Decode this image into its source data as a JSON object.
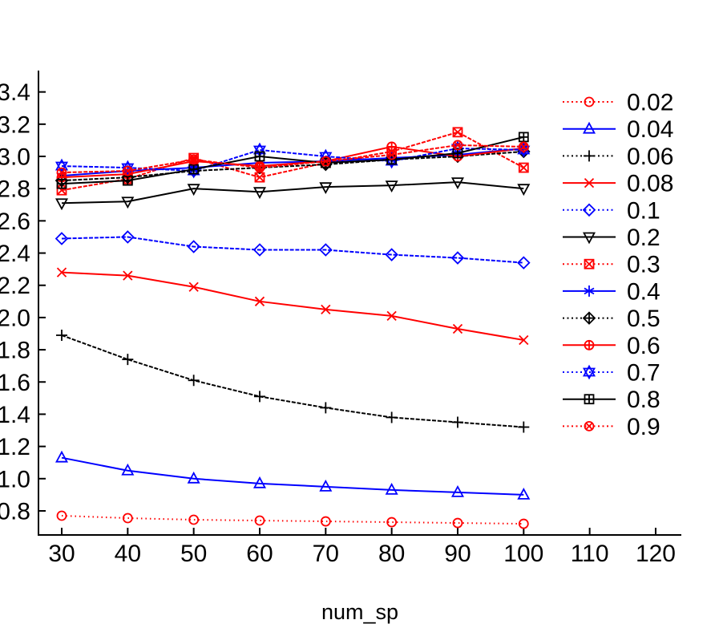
{
  "chart_data": {
    "type": "line",
    "title": "",
    "xlabel": "num_sp",
    "ylabel": "",
    "grid": false,
    "legend_position": "right",
    "xlim": [
      26.5,
      124.0
    ],
    "ylim": [
      0.64,
      3.54
    ],
    "xticks": [
      30,
      40,
      50,
      60,
      70,
      80,
      90,
      100,
      110,
      120
    ],
    "yticks": [
      0.8,
      1.0,
      1.2,
      1.4,
      1.6,
      1.8,
      2.0,
      2.2,
      2.4,
      2.6,
      2.8,
      3.0,
      3.2,
      3.4
    ],
    "ytick_labels": [
      "0.8",
      "1.0",
      "1.2",
      "1.4",
      "1.6",
      "1.8",
      "2.0",
      "2.2",
      "2.4",
      "2.6",
      "2.8",
      "3.0",
      "3.2",
      "3.4"
    ],
    "x": [
      30,
      40,
      50,
      60,
      70,
      80,
      90,
      100
    ],
    "series": [
      {
        "name": "0.02",
        "color": "#ff0000",
        "line": "dotted",
        "marker": "circle",
        "values": [
          0.77,
          0.755,
          0.745,
          0.74,
          0.735,
          0.73,
          0.725,
          0.72
        ]
      },
      {
        "name": "0.04",
        "color": "#0000ff",
        "line": "solid",
        "marker": "triangle-up",
        "values": [
          1.13,
          1.05,
          1.0,
          0.97,
          0.95,
          0.93,
          0.915,
          0.9
        ]
      },
      {
        "name": "0.06",
        "color": "#000000",
        "line": "dotted",
        "marker": "plus",
        "values": [
          1.89,
          1.74,
          1.61,
          1.51,
          1.44,
          1.38,
          1.35,
          1.32
        ]
      },
      {
        "name": "0.08",
        "color": "#ff0000",
        "line": "solid",
        "marker": "x",
        "values": [
          2.28,
          2.26,
          2.19,
          2.1,
          2.05,
          2.01,
          1.93,
          1.86
        ]
      },
      {
        "name": "0.1",
        "color": "#0000ff",
        "line": "dotted",
        "marker": "diamond",
        "values": [
          2.49,
          2.5,
          2.44,
          2.42,
          2.42,
          2.39,
          2.37,
          2.34
        ]
      },
      {
        "name": "0.2",
        "color": "#000000",
        "line": "solid",
        "marker": "triangle-down",
        "values": [
          2.71,
          2.72,
          2.8,
          2.78,
          2.81,
          2.82,
          2.84,
          2.8
        ]
      },
      {
        "name": "0.3",
        "color": "#ff0000",
        "line": "dotted",
        "marker": "box-x",
        "values": [
          2.79,
          2.86,
          2.99,
          2.87,
          2.96,
          3.03,
          3.15,
          2.93
        ]
      },
      {
        "name": "0.4",
        "color": "#0000ff",
        "line": "solid",
        "marker": "asterisk",
        "values": [
          2.88,
          2.91,
          2.93,
          2.96,
          2.97,
          2.99,
          3.01,
          3.05
        ]
      },
      {
        "name": "0.5",
        "color": "#000000",
        "line": "dotted",
        "marker": "diamond-plus",
        "values": [
          2.85,
          2.87,
          2.91,
          2.93,
          2.95,
          2.98,
          3.0,
          3.03
        ]
      },
      {
        "name": "0.6",
        "color": "#ff0000",
        "line": "solid",
        "marker": "circle-plus",
        "values": [
          2.87,
          2.89,
          2.97,
          2.94,
          2.97,
          3.06,
          3.0,
          3.05
        ]
      },
      {
        "name": "0.7",
        "color": "#0000ff",
        "line": "dotted",
        "marker": "hexagram",
        "values": [
          2.94,
          2.93,
          2.91,
          3.04,
          3.0,
          2.97,
          3.05,
          3.04
        ]
      },
      {
        "name": "0.8",
        "color": "#000000",
        "line": "solid",
        "marker": "box-plus",
        "values": [
          2.83,
          2.85,
          2.92,
          3.0,
          2.96,
          2.98,
          3.02,
          3.12
        ]
      },
      {
        "name": "0.9",
        "color": "#ff0000",
        "line": "dotted",
        "marker": "circle-x",
        "values": [
          2.9,
          2.91,
          2.98,
          2.93,
          2.97,
          3.01,
          3.07,
          3.06
        ]
      }
    ]
  }
}
